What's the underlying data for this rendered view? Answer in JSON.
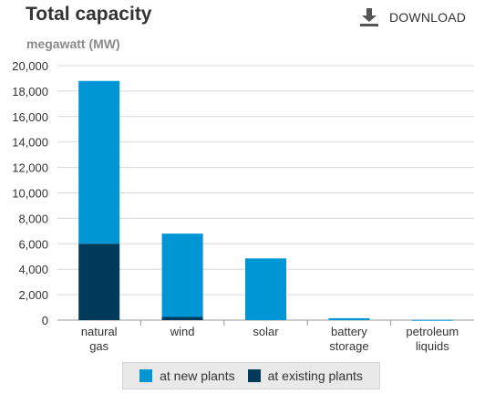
{
  "header": {
    "title": "Total capacity",
    "units": "megawatt (MW)",
    "download_label": "DOWNLOAD",
    "download_icon": "download-icon"
  },
  "colors": {
    "new": "#0096d6",
    "existing": "#003a5a",
    "grid": "#d9d9d9",
    "axis": "#999999",
    "text": "#333333"
  },
  "chart_data": {
    "type": "bar",
    "stacked": true,
    "title": "Total capacity",
    "ylabel": "megawatt (MW)",
    "ylim": [
      0,
      20000
    ],
    "yticks": [
      "0",
      "2,000",
      "4,000",
      "6,000",
      "8,000",
      "10,000",
      "12,000",
      "14,000",
      "16,000",
      "18,000",
      "20,000"
    ],
    "categories": [
      [
        "natural",
        "gas"
      ],
      [
        "wind"
      ],
      [
        "solar"
      ],
      [
        "battery",
        "storage"
      ],
      [
        "petroleum",
        "liquids"
      ]
    ],
    "series": [
      {
        "name": "at existing plants",
        "values": [
          6000,
          250,
          0,
          0,
          0
        ]
      },
      {
        "name": "at new plants",
        "values": [
          12800,
          6550,
          4850,
          150,
          20
        ]
      }
    ],
    "legend_position": "bottom",
    "grid": true
  }
}
